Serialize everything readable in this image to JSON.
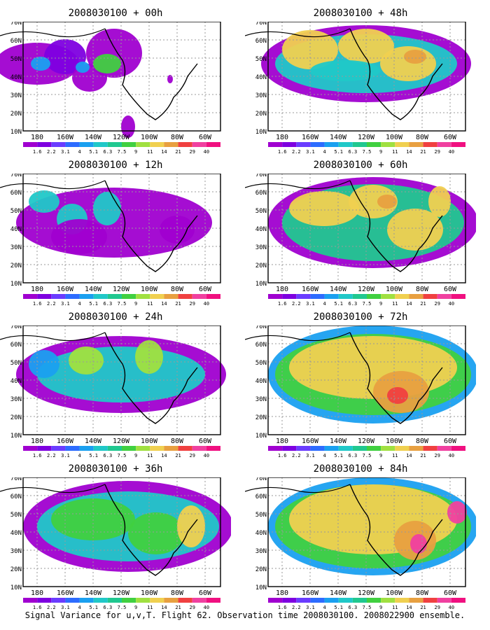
{
  "panels": [
    {
      "title": "2008030100 + 00h"
    },
    {
      "title": "2008030100 + 48h"
    },
    {
      "title": "2008030100 + 12h"
    },
    {
      "title": "2008030100 + 60h"
    },
    {
      "title": "2008030100 + 24h"
    },
    {
      "title": "2008030100 + 72h"
    },
    {
      "title": "2008030100 + 36h"
    },
    {
      "title": "2008030100 + 84h"
    }
  ],
  "lat_labels": [
    "70N",
    "60N",
    "50N",
    "40N",
    "30N",
    "20N",
    "10N"
  ],
  "lon_labels": [
    "180",
    "160W",
    "140W",
    "120W",
    "100W",
    "80W",
    "60W"
  ],
  "legend": {
    "labels": [
      "1.6",
      "2.2",
      "3.1",
      "4",
      "5.1",
      "6.3",
      "7.5",
      "9",
      "11",
      "14",
      "21",
      "29",
      "40"
    ],
    "colors": [
      "#a000d0",
      "#7e00e0",
      "#6a3cff",
      "#2d6cff",
      "#1aa0f0",
      "#20c8c8",
      "#20c890",
      "#40d040",
      "#a0e040",
      "#f0d050",
      "#e8a040",
      "#f04040",
      "#f040a0",
      "#f01080"
    ]
  },
  "caption": "Signal Variance for u,v,T. Flight 62. Observation time 2008030100. 2008022900 ensemble."
}
